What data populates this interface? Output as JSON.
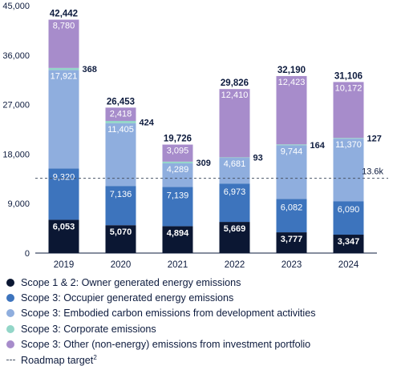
{
  "chart_data": {
    "type": "bar",
    "stacked": true,
    "categories": [
      "2019",
      "2020",
      "2021",
      "2022",
      "2023",
      "2024"
    ],
    "ylim": [
      0,
      45000
    ],
    "yticks": [
      "0",
      "9,000",
      "18,000",
      "27,000",
      "36,000",
      "45,000"
    ],
    "ytick_values": [
      0,
      9000,
      18000,
      27000,
      36000,
      45000
    ],
    "grid": false,
    "legend_position": "bottom",
    "series": [
      {
        "name": "Scope 1 & 2: Owner generated energy emissions",
        "color": "#0b1733",
        "values": [
          6053,
          5070,
          4894,
          5669,
          3777,
          3347
        ],
        "labels": [
          "6,053",
          "5,070",
          "4,894",
          "5,669",
          "3,777",
          "3,347"
        ]
      },
      {
        "name": "Scope 3: Occupier generated energy emissions",
        "color": "#3d74bd",
        "values": [
          9320,
          7136,
          7139,
          6973,
          6082,
          6090
        ],
        "labels": [
          "9,320",
          "7,136",
          "7,139",
          "6,973",
          "6,082",
          "6,090"
        ]
      },
      {
        "name": "Scope 3: Embodied carbon emissions from development activities",
        "color": "#8faede",
        "values": [
          17921,
          11405,
          4289,
          4681,
          9744,
          11370
        ],
        "labels": [
          "17,921",
          "11,405",
          "4,289",
          "4,681",
          "9,744",
          "11,370"
        ]
      },
      {
        "name": "Scope 3: Corporate emissions",
        "color": "#93d6c8",
        "values": [
          368,
          424,
          309,
          93,
          164,
          127
        ],
        "labels": [
          "368",
          "424",
          "309",
          "93",
          "164",
          "127"
        ]
      },
      {
        "name": "Scope 3: Other (non-energy) emissions from investment portfolio",
        "color": "#a78ccb",
        "values": [
          8780,
          2418,
          3095,
          12410,
          12423,
          10172
        ],
        "labels": [
          "8,780",
          "2,418",
          "3,095",
          "12,410",
          "12,423",
          "10,172"
        ]
      }
    ],
    "totals": [
      42442,
      26453,
      19726,
      29826,
      32190,
      31106
    ],
    "total_labels": [
      "42,442",
      "26,453",
      "19,726",
      "29,826",
      "32,190",
      "31,106"
    ],
    "roadmap_target": {
      "value": 13600,
      "label": "13.6k",
      "legend": "Roadmap target",
      "footnote": "2"
    }
  }
}
